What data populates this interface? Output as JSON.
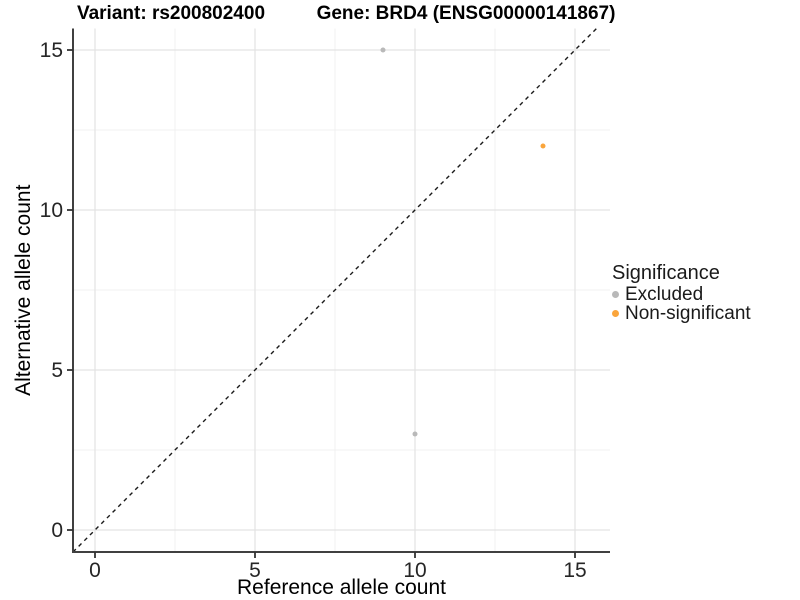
{
  "titles": {
    "variant": "Variant: rs200802400",
    "gene": "Gene: BRD4 (ENSG00000141867)"
  },
  "chart_data": {
    "type": "scatter",
    "xlabel": "Reference allele count",
    "ylabel": "Alternative allele count",
    "x_ticks": [
      0,
      5,
      10,
      15
    ],
    "y_ticks": [
      0,
      5,
      10,
      15
    ],
    "x_minor_ticks": [
      2.5,
      7.5,
      12.5
    ],
    "y_minor_ticks": [
      2.5,
      7.5,
      12.5
    ],
    "xlim": [
      -0.69,
      16.09
    ],
    "ylim": [
      -0.69,
      15.67
    ],
    "grid": true,
    "identity_line": {
      "style": "dashed",
      "slope": 1,
      "intercept": 0
    },
    "series": [
      {
        "name": "Excluded",
        "color": "#B9B9B9",
        "points": [
          {
            "x": 9,
            "y": 15
          },
          {
            "x": 10,
            "y": 3
          }
        ]
      },
      {
        "name": "Non-significant",
        "color": "#FAA53C",
        "points": [
          {
            "x": 14,
            "y": 12
          }
        ]
      }
    ],
    "legend": {
      "title": "Significance",
      "position": "right"
    }
  },
  "colors": {
    "major_grid": "#E3E3E3",
    "minor_grid": "#F1F1F1",
    "axis_line": "#404040",
    "tick_mark": "#333333",
    "tick_label": "#262626",
    "dashed_line": "#1a1a1a",
    "background": "#FFFFFF"
  }
}
